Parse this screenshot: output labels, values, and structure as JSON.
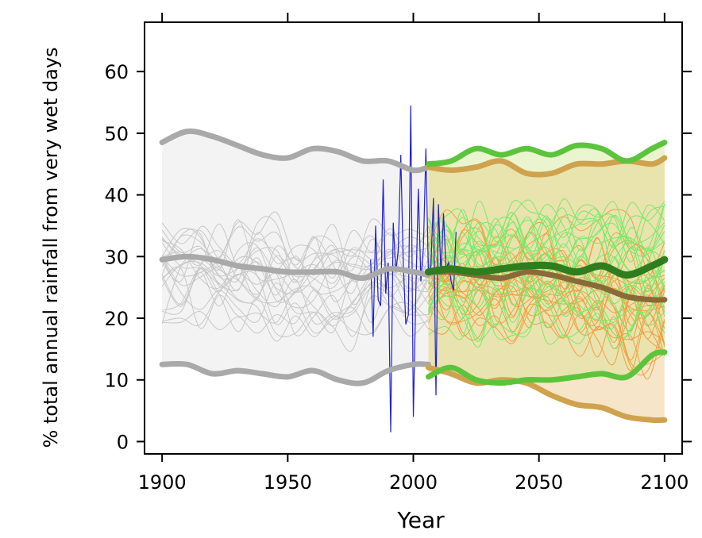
{
  "chart_data": {
    "type": "line",
    "xlabel": "Year",
    "ylabel": "% total annual rainfall from very wet days",
    "xlim": [
      1893,
      2107
    ],
    "ylim": [
      -2,
      68
    ],
    "xticks": [
      1900,
      1950,
      2000,
      2050,
      2100
    ],
    "yticks": [
      0,
      10,
      20,
      30,
      40,
      50,
      60
    ],
    "colors": {
      "historical_band": "#f3f3f3",
      "historical_line": "#a9a9a9",
      "historical_thin": "#c8c8c8",
      "rcp_low_band": "#eaf5cf",
      "rcp_low_line": "#5cc43c",
      "rcp_low_median": "#2f7d1e",
      "rcp_low_thin": "#7be86a",
      "rcp_high_band": "#e9e1ab",
      "rcp_high_lower_band": "#f6e5c8",
      "rcp_high_line": "#cfa24e",
      "rcp_high_median": "#8a6a38",
      "rcp_high_thin": "#f0a040",
      "observed": "#1f1fd0"
    },
    "historical": {
      "x": [
        1900,
        1910,
        1920,
        1930,
        1940,
        1950,
        1960,
        1970,
        1980,
        1990,
        2000,
        2006
      ],
      "upper": [
        48.5,
        50.3,
        49.5,
        48.0,
        46.5,
        46.0,
        47.5,
        47.0,
        45.5,
        45.5,
        44.0,
        44.5
      ],
      "median": [
        29.5,
        30.0,
        29.5,
        28.5,
        28.0,
        27.5,
        27.5,
        27.5,
        26.5,
        28.0,
        27.5,
        27.0
      ],
      "lower": [
        12.5,
        12.5,
        11.0,
        11.5,
        11.0,
        10.5,
        11.5,
        10.0,
        9.5,
        11.5,
        12.5,
        12.5
      ]
    },
    "rcp_low": {
      "x": [
        2006,
        2015,
        2025,
        2035,
        2045,
        2055,
        2065,
        2075,
        2085,
        2095,
        2100
      ],
      "upper": [
        45.0,
        45.5,
        47.5,
        46.5,
        47.5,
        46.5,
        48.0,
        47.5,
        45.5,
        47.5,
        48.5
      ],
      "median": [
        27.5,
        28.0,
        27.5,
        28.0,
        28.5,
        28.5,
        27.5,
        28.5,
        27.0,
        28.5,
        29.5
      ],
      "lower": [
        10.5,
        12.0,
        10.0,
        9.5,
        10.0,
        10.0,
        10.5,
        11.0,
        10.5,
        14.0,
        14.5
      ]
    },
    "rcp_high": {
      "x": [
        2006,
        2015,
        2025,
        2035,
        2045,
        2055,
        2065,
        2075,
        2085,
        2095,
        2100
      ],
      "upper": [
        44.5,
        44.0,
        44.5,
        45.5,
        43.5,
        43.5,
        45.0,
        45.0,
        45.5,
        45.0,
        46.0
      ],
      "median": [
        27.5,
        27.5,
        27.0,
        26.5,
        27.5,
        27.0,
        26.0,
        25.0,
        23.5,
        23.0,
        23.0
      ],
      "lower": [
        12.0,
        11.0,
        9.5,
        10.0,
        9.5,
        7.5,
        6.0,
        5.5,
        4.0,
        3.5,
        3.5
      ]
    },
    "observed": {
      "x": [
        1983,
        1984,
        1985,
        1986,
        1987,
        1988,
        1989,
        1990,
        1991,
        1992,
        1993,
        1994,
        1995,
        1996,
        1997,
        1998,
        1999,
        2000,
        2001,
        2002,
        2003,
        2004,
        2005,
        2006,
        2007,
        2008,
        2009,
        2010,
        2011,
        2012,
        2013,
        2014,
        2015,
        2016,
        2017
      ],
      "y": [
        29.5,
        17,
        35,
        23,
        22,
        42.5,
        24,
        29,
        1.5,
        35.5,
        27.5,
        31,
        46.5,
        29,
        19,
        20.5,
        54.5,
        4,
        24.5,
        41,
        26,
        31.5,
        47.5,
        27,
        28.5,
        39.5,
        7.5,
        38.5,
        27,
        37,
        28,
        29,
        26,
        24.5,
        34
      ]
    }
  }
}
